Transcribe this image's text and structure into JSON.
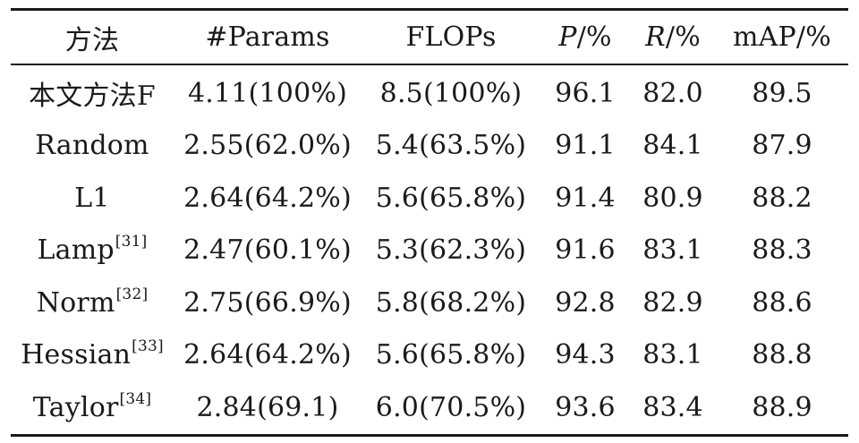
{
  "table": {
    "headers": {
      "method": "方法",
      "params": "#Params",
      "flops": "FLOPs",
      "p_symbol": "P",
      "p_unit": "/%",
      "r_symbol": "R",
      "r_unit": "/%",
      "map": "mAP/%"
    },
    "rows": [
      {
        "method": "本文方法F",
        "ref": "",
        "params": "4.11(100%)",
        "flops": "8.5(100%)",
        "p": "96.1",
        "r": "82.0",
        "map": "89.5"
      },
      {
        "method": "Random",
        "ref": "",
        "params": "2.55(62.0%)",
        "flops": "5.4(63.5%)",
        "p": "91.1",
        "r": "84.1",
        "map": "87.9"
      },
      {
        "method": "L1",
        "ref": "",
        "params": "2.64(64.2%)",
        "flops": "5.6(65.8%)",
        "p": "91.4",
        "r": "80.9",
        "map": "88.2"
      },
      {
        "method": "Lamp",
        "ref": "[31]",
        "params": "2.47(60.1%)",
        "flops": "5.3(62.3%)",
        "p": "91.6",
        "r": "83.1",
        "map": "88.3"
      },
      {
        "method": "Norm",
        "ref": "[32]",
        "params": "2.75(66.9%)",
        "flops": "5.8(68.2%)",
        "p": "92.8",
        "r": "82.9",
        "map": "88.6"
      },
      {
        "method": "Hessian",
        "ref": "[33]",
        "params": "2.64(64.2%)",
        "flops": "5.6(65.8%)",
        "p": "94.3",
        "r": "83.1",
        "map": "88.8"
      },
      {
        "method": "Taylor",
        "ref": "[34]",
        "params": "2.84(69.1)",
        "flops": "6.0(70.5%)",
        "p": "93.6",
        "r": "83.4",
        "map": "88.9"
      }
    ]
  }
}
